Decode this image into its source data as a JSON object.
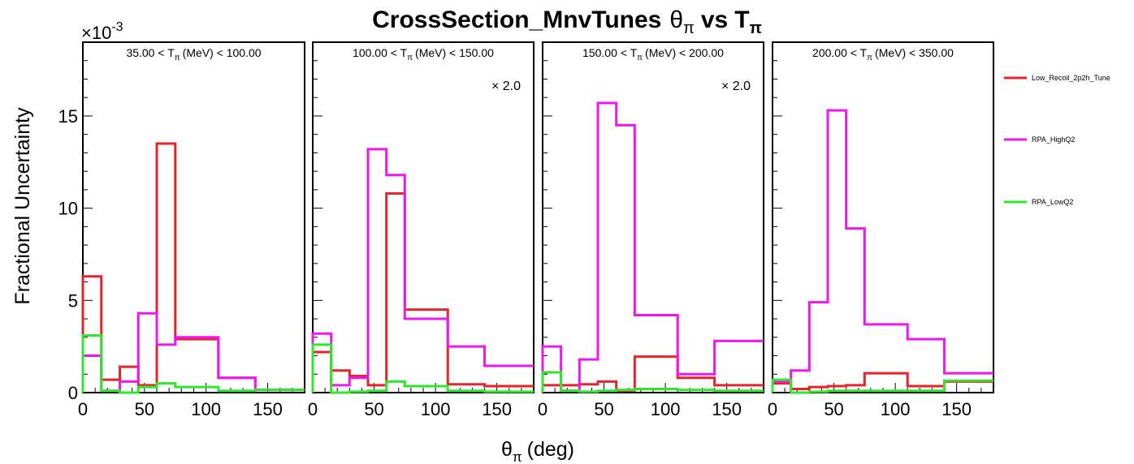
{
  "chart_data": {
    "type": "histogram-line",
    "title": "CrossSection_MnvTunes",
    "title_var_symbol": "θ",
    "title_var_sub": "π",
    "title_vs": "vs",
    "title_var2": "T",
    "title_var2_sub": "π",
    "ylabel": "Fractional Uncertainty",
    "xlabel_symbol": "θ",
    "xlabel_sub": "π",
    "xlabel_unit": "(deg)",
    "y_exponent_prefix": "×10",
    "y_exponent": "-3",
    "ylim": [
      0,
      19
    ],
    "xlim": [
      0,
      180
    ],
    "yticks": [
      0,
      5,
      10,
      15
    ],
    "xticks": [
      0,
      50,
      100,
      150
    ],
    "bin_edges": [
      0,
      15,
      30,
      45,
      60,
      75,
      110,
      140,
      180
    ],
    "colors": {
      "Low_Recoil_2p2h_Tune": "#e8242b",
      "RPA_HighQ2": "#ee17ee",
      "RPA_LowQ2": "#2ee62e"
    },
    "legend_position": "right",
    "series_names": [
      "Low_Recoil_2p2h_Tune",
      "RPA_HighQ2",
      "RPA_LowQ2"
    ],
    "panels": [
      {
        "label_lo": "35.00 <",
        "label_var": "T",
        "label_sub": "π",
        "label_hi": "(MeV) < 100.00",
        "scale_note": "",
        "series": [
          {
            "name": "Low_Recoil_2p2h_Tune",
            "values": [
              6.3,
              0.7,
              1.4,
              0.4,
              13.5,
              2.9,
              0.8,
              0.15
            ]
          },
          {
            "name": "RPA_HighQ2",
            "values": [
              2.0,
              0.1,
              0.6,
              4.3,
              2.6,
              3.0,
              0.8,
              0.15
            ]
          },
          {
            "name": "RPA_LowQ2",
            "values": [
              3.1,
              0.1,
              0.0,
              0.3,
              0.5,
              0.3,
              0.1,
              0.15
            ]
          }
        ]
      },
      {
        "label_lo": "100.00 <",
        "label_var": "T",
        "label_sub": "π",
        "label_hi": "(MeV) < 150.00",
        "scale_note": "× 2.0",
        "series": [
          {
            "name": "Low_Recoil_2p2h_Tune",
            "values": [
              2.2,
              1.2,
              0.9,
              0.4,
              10.8,
              4.5,
              0.45,
              0.35
            ]
          },
          {
            "name": "RPA_HighQ2",
            "values": [
              3.2,
              0.4,
              0.8,
              13.2,
              11.8,
              4.0,
              2.5,
              1.45
            ]
          },
          {
            "name": "RPA_LowQ2",
            "values": [
              2.6,
              0.0,
              0.05,
              0.1,
              0.6,
              0.35,
              0.1,
              0.05
            ]
          }
        ]
      },
      {
        "label_lo": "150.00 <",
        "label_var": "T",
        "label_sub": "π",
        "label_hi": "(MeV) < 200.00",
        "scale_note": "× 2.0",
        "series": [
          {
            "name": "Low_Recoil_2p2h_Tune",
            "values": [
              0.4,
              0.4,
              0.45,
              0.6,
              0.1,
              1.95,
              0.8,
              0.4
            ]
          },
          {
            "name": "RPA_HighQ2",
            "values": [
              2.5,
              0.1,
              1.8,
              15.7,
              14.5,
              4.2,
              1.0,
              2.8
            ]
          },
          {
            "name": "RPA_LowQ2",
            "values": [
              1.1,
              0.1,
              0.05,
              0.1,
              0.15,
              0.2,
              0.15,
              0.1
            ]
          }
        ]
      },
      {
        "label_lo": "200.00 <",
        "label_var": "T",
        "label_sub": "π",
        "label_hi": "(MeV) < 350.00",
        "scale_note": "",
        "series": [
          {
            "name": "Low_Recoil_2p2h_Tune",
            "values": [
              0.5,
              0.2,
              0.3,
              0.35,
              0.4,
              1.05,
              0.35,
              0.6
            ]
          },
          {
            "name": "RPA_HighQ2",
            "values": [
              0.6,
              1.2,
              4.9,
              15.3,
              8.9,
              3.7,
              2.9,
              1.05
            ]
          },
          {
            "name": "RPA_LowQ2",
            "values": [
              0.7,
              0.0,
              0.05,
              0.1,
              0.1,
              0.1,
              0.1,
              0.65
            ]
          }
        ]
      }
    ]
  }
}
